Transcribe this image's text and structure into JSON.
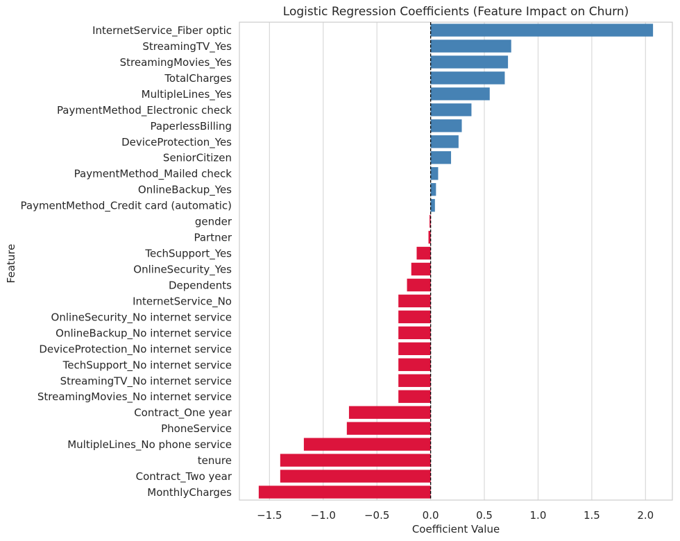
{
  "chart_data": {
    "type": "bar",
    "orientation": "horizontal",
    "title": "Logistic Regression Coefficients (Feature Impact on Churn)",
    "xlabel": "Coefficient Value",
    "ylabel": "Feature",
    "xlim": [
      -1.78,
      2.25
    ],
    "xticks": [
      -1.5,
      -1.0,
      -0.5,
      0.0,
      0.5,
      1.0,
      1.5,
      2.0
    ],
    "xtick_labels": [
      "−1.5",
      "−1.0",
      "−0.5",
      "0.0",
      "0.5",
      "1.0",
      "1.5",
      "2.0"
    ],
    "grid": "vertical",
    "reference_line": 0,
    "colors": {
      "positive": "#4682b4",
      "negative": "#dc143c"
    },
    "categories": [
      "InternetService_Fiber optic",
      "StreamingTV_Yes",
      "StreamingMovies_Yes",
      "TotalCharges",
      "MultipleLines_Yes",
      "PaymentMethod_Electronic check",
      "PaperlessBilling",
      "DeviceProtection_Yes",
      "SeniorCitizen",
      "PaymentMethod_Mailed check",
      "OnlineBackup_Yes",
      "PaymentMethod_Credit card (automatic)",
      "gender",
      "Partner",
      "TechSupport_Yes",
      "OnlineSecurity_Yes",
      "Dependents",
      "InternetService_No",
      "OnlineSecurity_No internet service",
      "OnlineBackup_No internet service",
      "DeviceProtection_No internet service",
      "TechSupport_No internet service",
      "StreamingTV_No internet service",
      "StreamingMovies_No internet service",
      "Contract_One year",
      "PhoneService",
      "MultipleLines_No phone service",
      "tenure",
      "Contract_Two year",
      "MonthlyCharges"
    ],
    "values": [
      2.07,
      0.75,
      0.72,
      0.69,
      0.55,
      0.38,
      0.29,
      0.26,
      0.19,
      0.07,
      0.05,
      0.04,
      -0.01,
      -0.02,
      -0.13,
      -0.18,
      -0.22,
      -0.3,
      -0.3,
      -0.3,
      -0.3,
      -0.3,
      -0.3,
      -0.3,
      -0.76,
      -0.78,
      -1.18,
      -1.4,
      -1.4,
      -1.6
    ]
  }
}
